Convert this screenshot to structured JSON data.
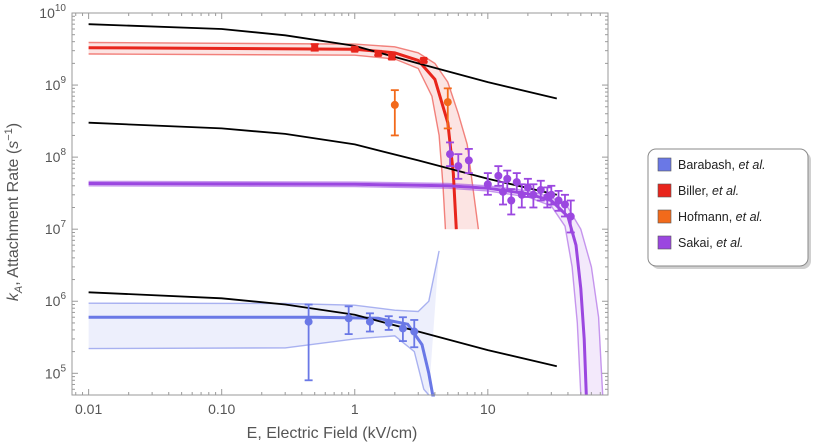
{
  "chart_data": {
    "type": "line",
    "title": "",
    "xlabel": "E, Electric Field (kV/cm)",
    "ylabel": "k_A, Attachment Rate (s^-1)",
    "xscale": "log",
    "yscale": "log",
    "xlim": [
      0.0075,
      80
    ],
    "ylim": [
      50000,
      10000000000
    ],
    "x_ticks": [
      {
        "value": 0.01,
        "label": "0.01"
      },
      {
        "value": 0.1,
        "label": "0.10"
      },
      {
        "value": 1,
        "label": "1"
      },
      {
        "value": 10,
        "label": "10"
      }
    ],
    "y_ticks": [
      {
        "value": 100000,
        "base": "10",
        "exp": "5"
      },
      {
        "value": 1000000,
        "base": "10",
        "exp": "6"
      },
      {
        "value": 10000000,
        "base": "10",
        "exp": "7"
      },
      {
        "value": 100000000,
        "base": "10",
        "exp": "8"
      },
      {
        "value": 1000000000,
        "base": "10",
        "exp": "9"
      },
      {
        "value": 10000000000,
        "base": "10",
        "exp": "10"
      }
    ],
    "ylabel_parts": {
      "k": "k",
      "sub": "A",
      "rest": ", Attachment Rate (",
      "s": "s",
      "sup": "−1",
      "close": ")"
    },
    "legend": [
      {
        "name": "Barabash",
        "etal": "et al.",
        "color": "#6a78e6"
      },
      {
        "name": "Biller",
        "etal": "et al.",
        "color": "#e8251c"
      },
      {
        "name": "Hofmann",
        "etal": "et al.",
        "color": "#f26a1b"
      },
      {
        "name": "Sakai",
        "etal": "et al.",
        "color": "#9b47e0"
      }
    ],
    "black_curves": [
      {
        "x": [
          0.01,
          0.1,
          0.3,
          1,
          3,
          10,
          33
        ],
        "y": [
          7000000000,
          6000000000,
          4900000000,
          3500000000,
          2000000000,
          1100000000,
          650000000
        ]
      },
      {
        "x": [
          0.01,
          0.1,
          0.3,
          1,
          3,
          10,
          33
        ],
        "y": [
          300000000,
          250000000,
          210000000,
          150000000,
          90000000,
          50000000,
          30000000
        ]
      },
      {
        "x": [
          0.01,
          0.1,
          0.3,
          1,
          3,
          10,
          33
        ],
        "y": [
          1330000,
          1100000,
          900000,
          650000,
          380000,
          210000,
          125000
        ]
      }
    ],
    "series": [
      {
        "name": "Barabash et al.",
        "color": "#6a78e6",
        "points": [
          {
            "x": 0.45,
            "y": 520000,
            "lo": 80000,
            "hi": 900000
          },
          {
            "x": 0.9,
            "y": 580000,
            "lo": 350000,
            "hi": 850000
          },
          {
            "x": 1.3,
            "y": 520000,
            "lo": 380000,
            "hi": 680000
          },
          {
            "x": 1.8,
            "y": 500000,
            "lo": 400000,
            "hi": 620000
          },
          {
            "x": 2.3,
            "y": 420000,
            "lo": 280000,
            "hi": 600000
          },
          {
            "x": 2.8,
            "y": 380000,
            "lo": 230000,
            "hi": 550000
          }
        ],
        "fit": {
          "x": [
            0.01,
            0.5,
            1.5,
            2.5,
            3.2,
            3.6,
            3.85,
            4.0
          ],
          "y": [
            600000,
            600000,
            580000,
            480000,
            250000,
            100000,
            40000,
            20000
          ]
        },
        "band_upper": {
          "x": [
            0.01,
            0.3,
            1,
            2,
            3,
            3.6,
            4.3
          ],
          "y": [
            940000,
            930000,
            880000,
            750000,
            720000,
            1000000,
            5000000
          ]
        },
        "band_lower": {
          "x": [
            0.01,
            0.3,
            1,
            2,
            2.8,
            3.3,
            3.6
          ],
          "y": [
            220000,
            225000,
            300000,
            330000,
            200000,
            60000,
            20000
          ]
        }
      },
      {
        "name": "Biller et al.",
        "color": "#e8251c",
        "points": [
          {
            "x": 0.5,
            "y": 3300000000,
            "lo": 3000000000,
            "hi": 3700000000
          },
          {
            "x": 1.0,
            "y": 3150000000,
            "lo": 3000000000,
            "hi": 3300000000
          },
          {
            "x": 1.5,
            "y": 2750000000,
            "lo": 2600000000,
            "hi": 2900000000
          },
          {
            "x": 1.9,
            "y": 2450000000,
            "lo": 2300000000,
            "hi": 2600000000
          },
          {
            "x": 3.3,
            "y": 2200000000,
            "lo": 2100000000,
            "hi": 2300000000
          }
        ],
        "fit": {
          "x": [
            0.01,
            1,
            2,
            3,
            4,
            5,
            5.5,
            5.8
          ],
          "y": [
            3300000000,
            3150000000,
            2800000000,
            2200000000,
            1200000000,
            300000000,
            60000000,
            10000000
          ]
        },
        "band_upper": {
          "x": [
            0.01,
            1,
            2,
            3,
            4,
            5,
            6,
            7,
            8.5
          ],
          "y": [
            3900000000,
            3700000000,
            3400000000,
            2800000000,
            2000000000,
            1100000000,
            400000000,
            150000000,
            10000000
          ]
        },
        "band_lower": {
          "x": [
            0.01,
            1,
            2,
            3,
            3.8,
            4.3,
            4.6,
            4.8
          ],
          "y": [
            2700000000,
            2600000000,
            2300000000,
            1700000000,
            700000000,
            200000000,
            40000000,
            10000000
          ]
        }
      },
      {
        "name": "Hofmann et al.",
        "color": "#f26a1b",
        "points": [
          {
            "x": 2.0,
            "y": 530000000,
            "lo": 200000000,
            "hi": 850000000
          },
          {
            "x": 5.0,
            "y": 580000000,
            "lo": 250000000,
            "hi": 900000000
          }
        ]
      },
      {
        "name": "Sakai et al.",
        "color": "#9b47e0",
        "points": [
          {
            "x": 5.2,
            "y": 110000000,
            "lo": 75000000,
            "hi": 160000000
          },
          {
            "x": 6.0,
            "y": 75000000,
            "lo": 50000000,
            "hi": 110000000
          },
          {
            "x": 7.2,
            "y": 90000000,
            "lo": 60000000,
            "hi": 130000000
          },
          {
            "x": 10.0,
            "y": 42000000,
            "lo": 30000000,
            "hi": 60000000
          },
          {
            "x": 12.0,
            "y": 55000000,
            "lo": 40000000,
            "hi": 75000000
          },
          {
            "x": 13.0,
            "y": 33000000,
            "lo": 22000000,
            "hi": 45000000
          },
          {
            "x": 14.0,
            "y": 50000000,
            "lo": 35000000,
            "hi": 65000000
          },
          {
            "x": 15.0,
            "y": 25000000,
            "lo": 16000000,
            "hi": 36000000
          },
          {
            "x": 16.5,
            "y": 45000000,
            "lo": 33000000,
            "hi": 60000000
          },
          {
            "x": 18.0,
            "y": 30000000,
            "lo": 20000000,
            "hi": 42000000
          },
          {
            "x": 20.0,
            "y": 38000000,
            "lo": 28000000,
            "hi": 50000000
          },
          {
            "x": 22.0,
            "y": 30000000,
            "lo": 20000000,
            "hi": 42000000
          },
          {
            "x": 25.0,
            "y": 35000000,
            "lo": 25000000,
            "hi": 47000000
          },
          {
            "x": 28.0,
            "y": 28000000,
            "lo": 20000000,
            "hi": 38000000
          },
          {
            "x": 30.0,
            "y": 30000000,
            "lo": 22000000,
            "hi": 40000000
          },
          {
            "x": 34.0,
            "y": 25000000,
            "lo": 18000000,
            "hi": 34000000
          },
          {
            "x": 38.0,
            "y": 22000000,
            "lo": 15000000,
            "hi": 30000000
          },
          {
            "x": 42.0,
            "y": 15000000,
            "lo": 9000000,
            "hi": 25000000
          }
        ],
        "fit": {
          "x": [
            0.01,
            1,
            5,
            10,
            20,
            30,
            40,
            46,
            50,
            53,
            55
          ],
          "y": [
            43000000,
            42000000,
            40000000,
            37000000,
            31000000,
            25000000,
            15000000,
            6000000,
            1500000,
            300000,
            50000
          ]
        },
        "band_upper": {
          "x": [
            0.01,
            1,
            5,
            10,
            20,
            30,
            40,
            50,
            60,
            68,
            73
          ],
          "y": [
            46000000,
            45000000,
            43000000,
            40000000,
            34000000,
            28000000,
            20000000,
            10000000,
            3000000,
            600000,
            50000
          ]
        },
        "band_lower": {
          "x": [
            0.01,
            1,
            5,
            10,
            20,
            30,
            38,
            43,
            47,
            50
          ],
          "y": [
            40000000,
            39000000,
            37000000,
            34000000,
            28000000,
            21000000,
            11000000,
            3000000,
            500000,
            50000
          ]
        }
      }
    ]
  }
}
